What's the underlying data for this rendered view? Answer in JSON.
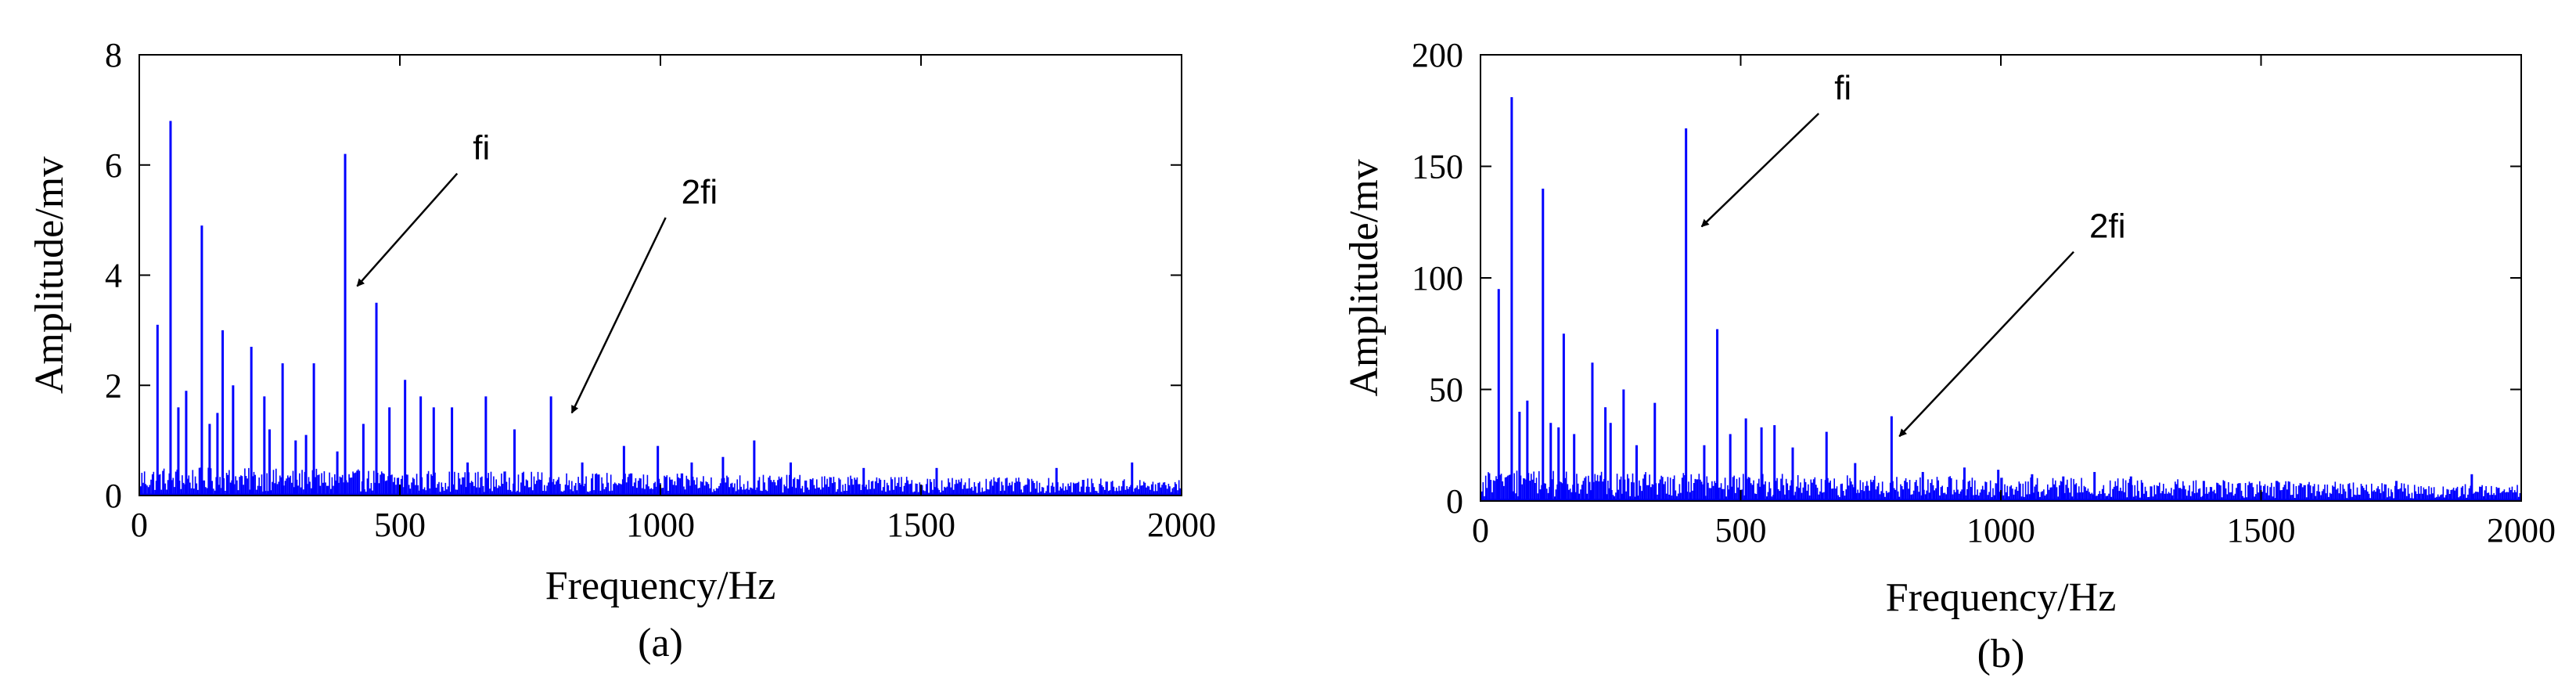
{
  "colors": {
    "series": "#0000ff",
    "axes": "#000000",
    "background": "#ffffff"
  },
  "chart_data": [
    {
      "type": "line",
      "panel_label": "(a)",
      "xlabel": "Frequency/Hz",
      "ylabel": "Amplitude/mv",
      "xlim": [
        0,
        2000
      ],
      "ylim": [
        0,
        8
      ],
      "xticks": [
        0,
        500,
        1000,
        1500,
        2000
      ],
      "yticks": [
        0,
        2,
        4,
        6,
        8
      ],
      "grid": false,
      "legend": "none",
      "noise_floor": 0.3,
      "peaks": [
        {
          "x": 35,
          "y": 3.1
        },
        {
          "x": 60,
          "y": 6.8
        },
        {
          "x": 75,
          "y": 1.6
        },
        {
          "x": 90,
          "y": 1.9
        },
        {
          "x": 120,
          "y": 4.9
        },
        {
          "x": 135,
          "y": 1.3
        },
        {
          "x": 150,
          "y": 1.5
        },
        {
          "x": 160,
          "y": 3.0
        },
        {
          "x": 180,
          "y": 2.0
        },
        {
          "x": 215,
          "y": 2.7
        },
        {
          "x": 240,
          "y": 1.8
        },
        {
          "x": 250,
          "y": 1.2
        },
        {
          "x": 275,
          "y": 2.4
        },
        {
          "x": 300,
          "y": 1.0
        },
        {
          "x": 320,
          "y": 1.1
        },
        {
          "x": 335,
          "y": 2.4
        },
        {
          "x": 380,
          "y": 0.8
        },
        {
          "x": 395,
          "y": 6.2
        },
        {
          "x": 430,
          "y": 1.3
        },
        {
          "x": 455,
          "y": 3.5
        },
        {
          "x": 480,
          "y": 1.6
        },
        {
          "x": 510,
          "y": 2.1
        },
        {
          "x": 540,
          "y": 1.8
        },
        {
          "x": 565,
          "y": 1.6
        },
        {
          "x": 600,
          "y": 1.6
        },
        {
          "x": 630,
          "y": 0.6
        },
        {
          "x": 665,
          "y": 1.8
        },
        {
          "x": 720,
          "y": 1.2
        },
        {
          "x": 790,
          "y": 1.8
        },
        {
          "x": 850,
          "y": 0.6
        },
        {
          "x": 930,
          "y": 0.9
        },
        {
          "x": 995,
          "y": 0.9
        },
        {
          "x": 1060,
          "y": 0.6
        },
        {
          "x": 1120,
          "y": 0.7
        },
        {
          "x": 1180,
          "y": 1.0
        },
        {
          "x": 1250,
          "y": 0.6
        },
        {
          "x": 1390,
          "y": 0.5
        },
        {
          "x": 1530,
          "y": 0.5
        },
        {
          "x": 1760,
          "y": 0.5
        },
        {
          "x": 1905,
          "y": 0.6
        }
      ],
      "annotations": [
        {
          "text": "fi",
          "x": 640,
          "y": 6.1,
          "arrow_to": {
            "x": 418,
            "y": 3.8
          }
        },
        {
          "text": "2fi",
          "x": 1040,
          "y": 5.3,
          "arrow_to": {
            "x": 830,
            "y": 1.5
          }
        }
      ]
    },
    {
      "type": "line",
      "panel_label": "(b)",
      "xlabel": "Frequency/Hz",
      "ylabel": "Amplitude/mv",
      "xlim": [
        0,
        2000
      ],
      "ylim": [
        0,
        200
      ],
      "xticks": [
        0,
        500,
        1000,
        1500,
        2000
      ],
      "yticks": [
        0,
        50,
        100,
        150,
        200
      ],
      "grid": false,
      "legend": "none",
      "noise_floor": 8,
      "peaks": [
        {
          "x": 35,
          "y": 95
        },
        {
          "x": 60,
          "y": 181
        },
        {
          "x": 75,
          "y": 40
        },
        {
          "x": 90,
          "y": 45
        },
        {
          "x": 120,
          "y": 140
        },
        {
          "x": 135,
          "y": 35
        },
        {
          "x": 150,
          "y": 33
        },
        {
          "x": 160,
          "y": 75
        },
        {
          "x": 180,
          "y": 30
        },
        {
          "x": 215,
          "y": 62
        },
        {
          "x": 240,
          "y": 42
        },
        {
          "x": 250,
          "y": 35
        },
        {
          "x": 275,
          "y": 50
        },
        {
          "x": 300,
          "y": 25
        },
        {
          "x": 335,
          "y": 44
        },
        {
          "x": 395,
          "y": 167
        },
        {
          "x": 430,
          "y": 25
        },
        {
          "x": 455,
          "y": 77
        },
        {
          "x": 480,
          "y": 30
        },
        {
          "x": 510,
          "y": 37
        },
        {
          "x": 540,
          "y": 33
        },
        {
          "x": 565,
          "y": 34
        },
        {
          "x": 600,
          "y": 24
        },
        {
          "x": 665,
          "y": 31
        },
        {
          "x": 720,
          "y": 17
        },
        {
          "x": 790,
          "y": 38
        },
        {
          "x": 850,
          "y": 13
        },
        {
          "x": 930,
          "y": 15
        },
        {
          "x": 995,
          "y": 14
        },
        {
          "x": 1060,
          "y": 12
        },
        {
          "x": 1120,
          "y": 11
        },
        {
          "x": 1180,
          "y": 13
        },
        {
          "x": 1250,
          "y": 11
        },
        {
          "x": 1390,
          "y": 9
        },
        {
          "x": 1530,
          "y": 9
        },
        {
          "x": 1760,
          "y": 9
        },
        {
          "x": 1905,
          "y": 12
        }
      ],
      "annotations": [
        {
          "text": "fi",
          "x": 680,
          "y": 180,
          "arrow_to": {
            "x": 425,
            "y": 123
          }
        },
        {
          "text": "2fi",
          "x": 1170,
          "y": 118,
          "arrow_to": {
            "x": 805,
            "y": 29
          }
        }
      ]
    }
  ]
}
